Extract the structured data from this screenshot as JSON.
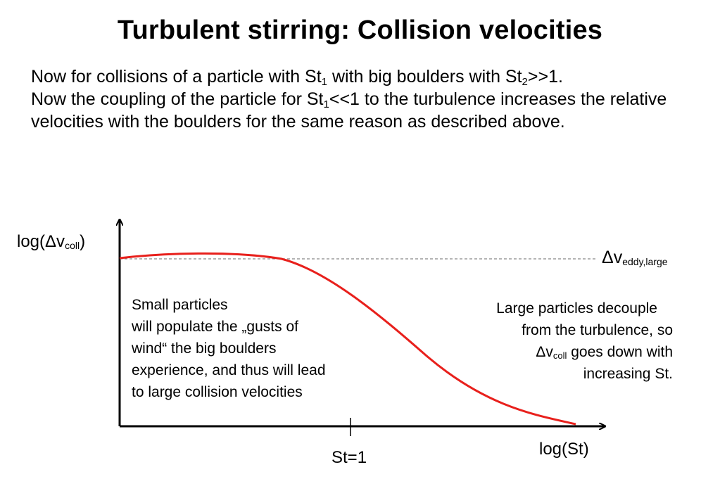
{
  "slide": {
    "title": "Turbulent stirring: Collision velocities",
    "body": {
      "p1": "Now for collisions of a particle with St",
      "sub1": "1",
      "p2": " with big boulders with St",
      "sub2": "2",
      "p3": ">>1.",
      "p4": "Now the coupling of the particle for  St",
      "sub3": "1",
      "p5": "<<1 to the turbulence increases the relative velocities with the boulders for the same reason as described above."
    }
  },
  "diagram": {
    "y_axis": {
      "main": "log(Δv",
      "sub": "coll",
      "close": ")"
    },
    "x_axis": {
      "label": "log(St)"
    },
    "tick": {
      "label": "St=1"
    },
    "reference_line": {
      "main": "Δv",
      "sub": "eddy,large"
    },
    "notes": {
      "small": {
        "line1": "Small particles",
        "line2": "will populate the „gusts of",
        "line3": "wind“ the big boulders",
        "line4": "experience, and thus will lead",
        "line5": "to large collision velocities"
      },
      "large": {
        "line1": "Large particles decouple",
        "line2": "from the turbulence, so",
        "line3_main": "Δv",
        "line3_sub": "coll",
        "line3_rest": " goes down with",
        "line4": "increasing St."
      }
    },
    "colors": {
      "curve": "#e8201c",
      "axes": "#000000",
      "reference": "#888888"
    }
  }
}
